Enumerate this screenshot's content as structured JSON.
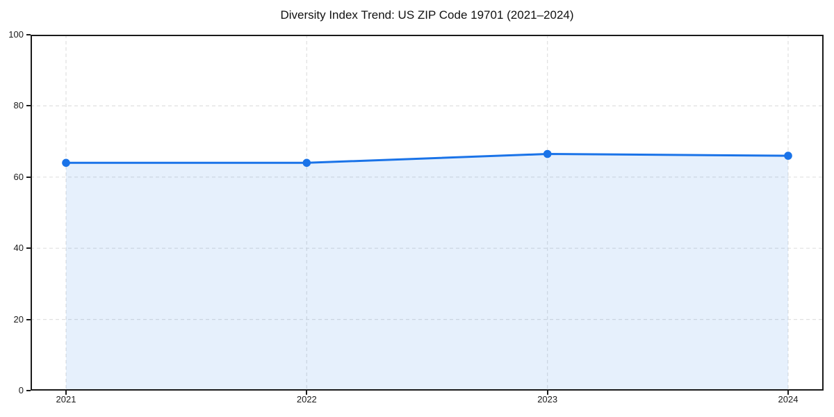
{
  "figure": {
    "background_color": "#ffffff"
  },
  "chart_data": {
    "type": "area",
    "title": "Diversity Index Trend: US ZIP Code 19701 (2021–2024)",
    "categories": [
      "2021",
      "2022",
      "2023",
      "2024"
    ],
    "series": [
      {
        "name": "Diversity Index",
        "values": [
          64,
          64,
          66.5,
          66
        ]
      }
    ],
    "xlabel": "",
    "ylabel": "",
    "ylim": [
      0,
      100
    ],
    "yticks": [
      0,
      20,
      40,
      60,
      80,
      100
    ],
    "grid": true,
    "grid_style": "dashed",
    "legend": false,
    "colors": {
      "line": "#1a73e8",
      "marker": "#1a73e8",
      "area_fill": "rgba(26,115,232,0.11)",
      "grid": "#e0e0e0",
      "spine": "#1a1a1a",
      "tick_text": "#1a1a1a",
      "title_text": "#111111"
    }
  }
}
